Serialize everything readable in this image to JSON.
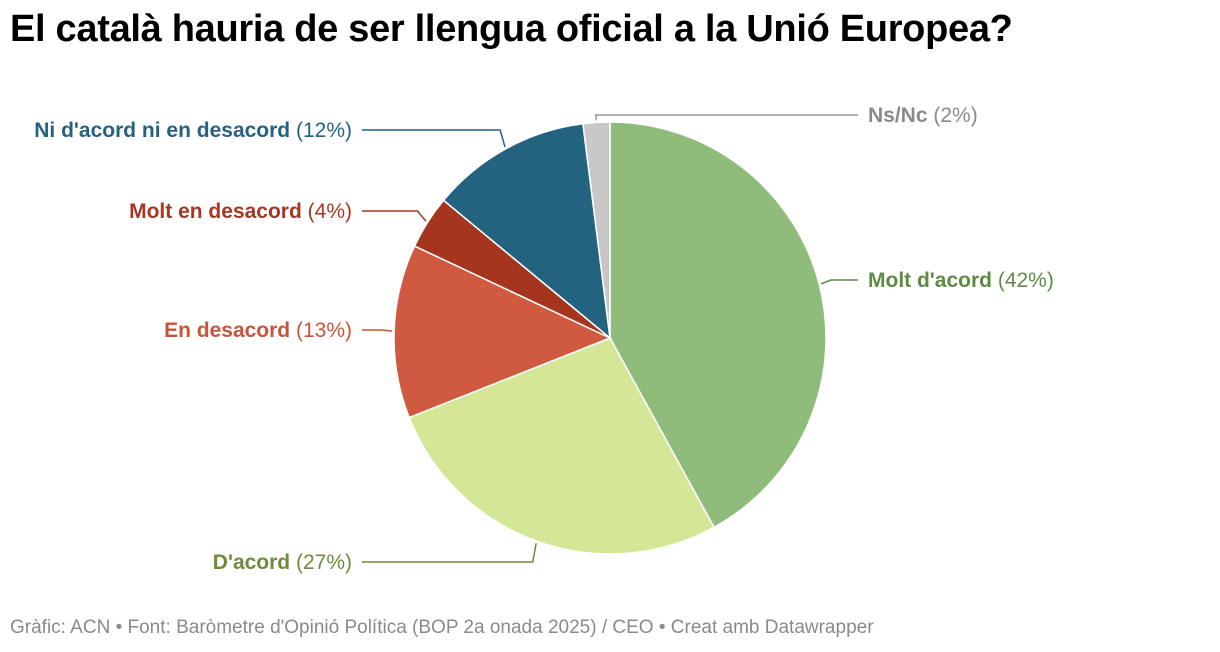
{
  "title": "El català hauria de ser llengua oficial a la Unió Europea?",
  "footer": "Gràfic: ACN • Font: Baròmetre d'Opinió Política (BOP 2a onada 2025) / CEO • Creat amb Datawrapper",
  "chart_data": {
    "type": "pie",
    "title": "El català hauria de ser llengua oficial a la Unió Europea?",
    "unit": "%",
    "slices": [
      {
        "name": "Molt d'acord",
        "display": "(42%)",
        "value": 42,
        "color": "#8fbc7a",
        "label_color": "#5e8a45"
      },
      {
        "name": "D'acord",
        "display": "(27%)",
        "value": 27,
        "color": "#d4e797",
        "label_color": "#6f8a3a"
      },
      {
        "name": "En desacord",
        "display": "(13%)",
        "value": 13,
        "color": "#d05a40",
        "label_color": "#c8553b"
      },
      {
        "name": "Molt en desacord",
        "display": "(4%)",
        "value": 4,
        "color": "#a63520",
        "label_color": "#a73622"
      },
      {
        "name": "Ni d'acord ni en desacord",
        "display": "(12%)",
        "value": 12,
        "color": "#24637f",
        "label_color": "#24637f"
      },
      {
        "name": "Ns/Nc",
        "display": "(2%)",
        "value": 2,
        "color": "#c8c8c8",
        "label_color": "#8a8a8a"
      }
    ]
  }
}
